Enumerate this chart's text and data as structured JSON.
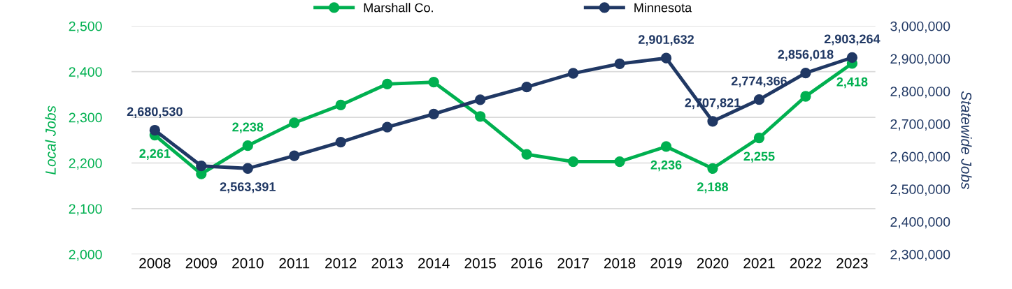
{
  "chart_data": {
    "type": "line",
    "ylabel": "Local Jobs",
    "y2label": "Statewide Jobs",
    "categories": [
      "2008",
      "2009",
      "2010",
      "2011",
      "2012",
      "2013",
      "2014",
      "2015",
      "2016",
      "2017",
      "2018",
      "2019",
      "2020",
      "2021",
      "2022",
      "2023"
    ],
    "series": [
      {
        "name": "Marshall Co.",
        "color": "#00b050",
        "values": [
          2261,
          2176,
          2238,
          2288,
          2327,
          2373,
          2377,
          2302,
          2219,
          2203,
          2203,
          2236,
          2188,
          2255,
          2346,
          2418
        ],
        "value_labels": [
          "2,261",
          null,
          "2,238",
          null,
          null,
          null,
          null,
          null,
          null,
          null,
          null,
          "2,236",
          "2,188",
          "2,255",
          null,
          "2,418"
        ]
      },
      {
        "name": "Minnesota",
        "color": "#203864",
        "axis": "y2",
        "values": [
          2680530,
          2571000,
          2563391,
          2602000,
          2644000,
          2690000,
          2730000,
          2774000,
          2813000,
          2855000,
          2884000,
          2901632,
          2707821,
          2774366,
          2856018,
          2903264
        ],
        "value_labels": [
          "2,680,530",
          null,
          "2,563,391",
          null,
          null,
          null,
          null,
          null,
          null,
          null,
          null,
          "2,901,632",
          "2,707,821",
          "2,774,366",
          "2,856,018",
          "2,903,264"
        ]
      }
    ],
    "ylim": [
      2000,
      2500
    ],
    "yticks": [
      {
        "value": 2000,
        "label": "2,000"
      },
      {
        "value": 2100,
        "label": "2,100"
      },
      {
        "value": 2200,
        "label": "2,200"
      },
      {
        "value": 2300,
        "label": "2,300"
      },
      {
        "value": 2400,
        "label": "2,400"
      },
      {
        "value": 2500,
        "label": "2,500"
      }
    ],
    "y2lim": [
      2300000,
      3000000
    ],
    "y2ticks": [
      {
        "value": 2300000,
        "label": "2,300,000"
      },
      {
        "value": 2400000,
        "label": "2,400,000"
      },
      {
        "value": 2500000,
        "label": "2,500,000"
      },
      {
        "value": 2600000,
        "label": "2,600,000"
      },
      {
        "value": 2700000,
        "label": "2,700,000"
      },
      {
        "value": 2800000,
        "label": "2,800,000"
      },
      {
        "value": 2900000,
        "label": "2,900,000"
      },
      {
        "value": 3000000,
        "label": "3,000,000"
      }
    ],
    "grid": "y",
    "legend": "top",
    "marker": "circle",
    "line_style": "solid"
  }
}
